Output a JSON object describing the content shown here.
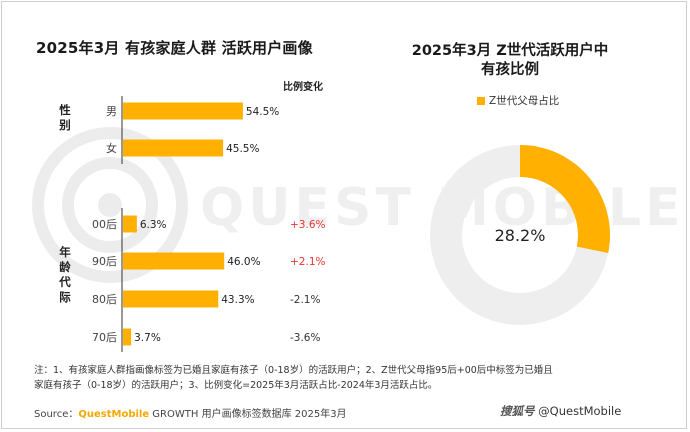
{
  "page": {
    "title_left": "2025年3月 有孩家庭人群 活跃用户画像",
    "title_right": "2025年3月 Z世代活跃用户中有孩比例",
    "change_header": "比例变化",
    "group_gender": "性别",
    "group_age": "年龄代际",
    "legend_label": "Z世代父母占比",
    "note": "注：1、有孩家庭人群指画像标签为已婚且家庭有孩子（0-18岁）的活跃用户；2、Z世代父母指95后+00后中标签为已婚且家庭有孩子（0-18岁）的活跃用户；3、比例变化=2025年3月活跃占比-2024年3月活跃占比。",
    "source_prefix": "Source：",
    "source_brand": "QuestMobile",
    "source_suffix": " GROWTH 用户画像标签数据库 2025年3月",
    "watermark_mark": "搜狐号",
    "watermark_text": "@QuestMobile",
    "background_watermark": "QUEST MOBILE"
  },
  "colors": {
    "bar": "#ffb000",
    "positive_change": "#e8362d",
    "negative_change": "#333333",
    "donut_remainder": "#eeeeee"
  },
  "chart_data": [
    {
      "type": "bar",
      "orientation": "horizontal",
      "categories": [
        "男",
        "女",
        "00后",
        "90后",
        "80后",
        "70后"
      ],
      "values": [
        54.5,
        45.5,
        6.3,
        46.0,
        43.3,
        3.7
      ],
      "value_labels": [
        "54.5%",
        "45.5%",
        "6.3%",
        "46.0%",
        "43.3%",
        "3.7%"
      ],
      "changes": [
        "",
        "",
        "+3.6%",
        "+2.1%",
        "-2.1%",
        "-3.6%"
      ],
      "xlim": [
        0,
        60
      ],
      "grid": false
    },
    {
      "type": "pie",
      "variant": "donut",
      "labels": [
        "Z世代父母占比",
        ""
      ],
      "values": [
        28.2,
        71.8
      ],
      "center_label": "28.2%",
      "legend": "top"
    }
  ]
}
